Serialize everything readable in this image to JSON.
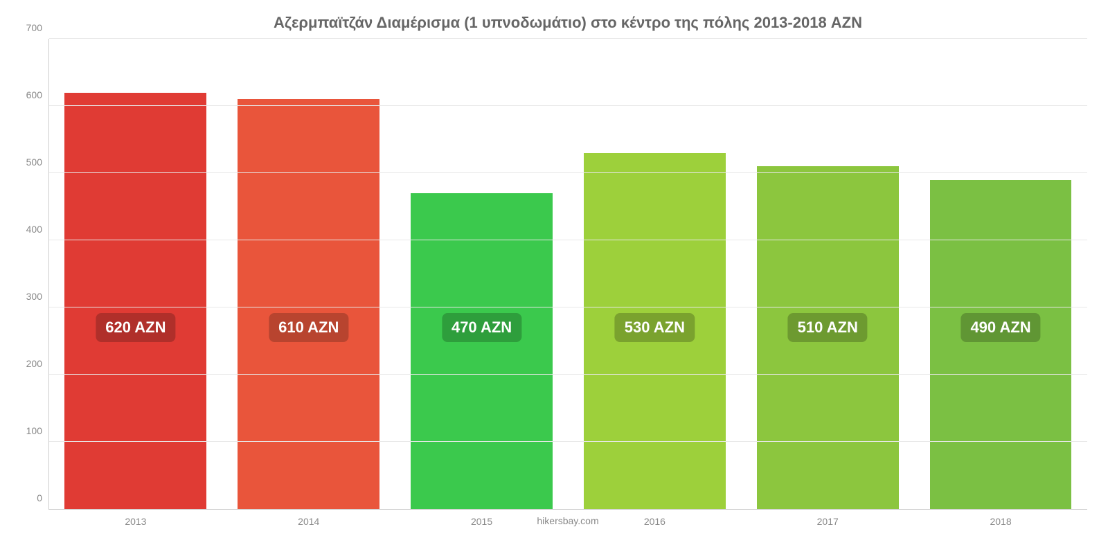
{
  "chart": {
    "type": "bar",
    "title": "Αζερμπαϊτζάν Διαμέρισμα (1 υπνοδωμάτιο) στο κέντρο της πόλης 2013-2018 AZN",
    "title_fontsize": 22,
    "title_color": "#666666",
    "source": "hikersbay.com",
    "background_color": "#ffffff",
    "grid_color": "#e8e8e8",
    "axis_color": "#cccccc",
    "tick_label_color": "#888888",
    "tick_label_fontsize": 14,
    "ylim": [
      0,
      700
    ],
    "ytick_step": 100,
    "yticks": [
      "0",
      "100",
      "200",
      "300",
      "400",
      "500",
      "600",
      "700"
    ],
    "categories": [
      "2013",
      "2014",
      "2015",
      "2016",
      "2017",
      "2018"
    ],
    "values": [
      620,
      610,
      470,
      530,
      510,
      490
    ],
    "value_labels": [
      "620 AZN",
      "610 AZN",
      "470 AZN",
      "530 AZN",
      "510 AZN",
      "490 AZN"
    ],
    "bar_colors": [
      "#e03b34",
      "#e9553b",
      "#3bc94d",
      "#9dd03b",
      "#8cc63e",
      "#7bc043"
    ],
    "label_bg_colors": [
      "#b02f2a",
      "#b8442f",
      "#2e9e3c",
      "#7aa22e",
      "#6d9a30",
      "#609634"
    ],
    "bar_width_ratio": 0.82,
    "value_label_fontsize": 22,
    "value_label_fontweight": "bold",
    "value_label_color": "#ffffff",
    "label_vertical_center_value": 270
  }
}
